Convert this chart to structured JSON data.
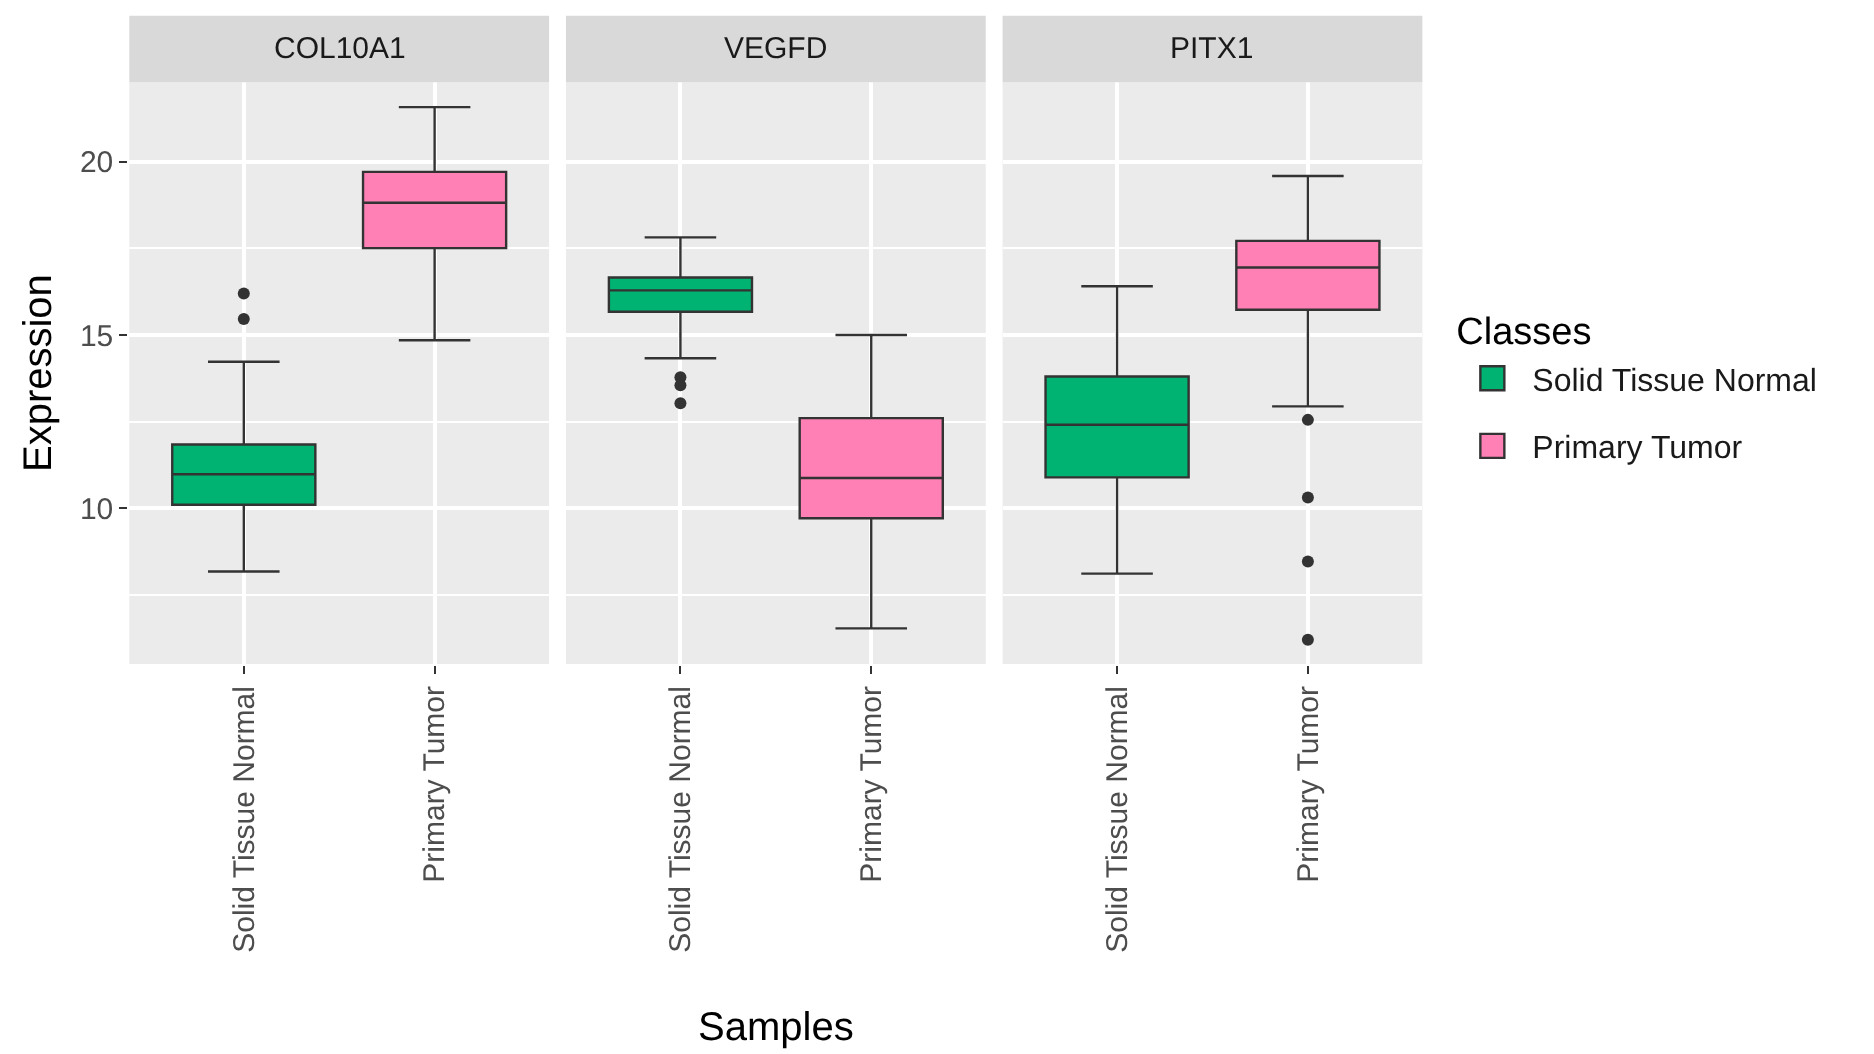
{
  "chart_data": [
    {
      "type": "box",
      "title": "COL10A1",
      "ylabel": "Expression",
      "legend_title": "Classes",
      "legend": "right",
      "categories": [
        "Solid Tissue Normal",
        "Primary Tumor"
      ],
      "ylim": [
        5.5,
        22.3
      ],
      "yticks": [
        {
          "value": 7.5,
          "label": null
        },
        10,
        {
          "value": 12.5,
          "label": null
        },
        15,
        {
          "value": 17.5,
          "label": null
        },
        20
      ],
      "grid": true,
      "series": [
        {
          "name": "Solid Tissue Normal",
          "color": "#00b373",
          "boxes": [
            {
              "low": 8.17,
              "q1": 10.1,
              "median": 10.98,
              "q3": 11.84,
              "high": 14.23,
              "outliers": [
                16.2,
                15.46
              ]
            },
            null
          ]
        },
        {
          "name": "Primary Tumor",
          "color": "#ff80b5",
          "boxes": [
            null,
            {
              "low": 14.85,
              "q1": 17.51,
              "median": 18.82,
              "q3": 19.71,
              "high": 21.58
            }
          ]
        }
      ]
    },
    {
      "type": "box",
      "title": "VEGFD",
      "xlabel": "Samples",
      "legend": "right",
      "tick_labels": "x",
      "categories": [
        "Solid Tissue Normal",
        "Primary Tumor"
      ],
      "ylim": [
        5.5,
        22.3
      ],
      "yticks": [
        {
          "value": 7.5,
          "label": null
        },
        10,
        {
          "value": 12.5,
          "label": null
        },
        15,
        {
          "value": 17.5,
          "label": null
        },
        20
      ],
      "grid": true,
      "series": [
        {
          "name": "Solid Tissue Normal",
          "color": "#00b373",
          "boxes": [
            {
              "low": 14.33,
              "q1": 15.67,
              "median": 16.29,
              "q3": 16.66,
              "high": 17.82,
              "outliers": [
                13.78,
                13.55,
                13.03
              ]
            },
            null
          ]
        },
        {
          "name": "Primary Tumor",
          "color": "#ff80b5",
          "boxes": [
            null,
            {
              "low": 6.53,
              "q1": 9.71,
              "median": 10.87,
              "q3": 12.6,
              "high": 15.0
            }
          ]
        }
      ]
    },
    {
      "type": "box",
      "title": "PITX1",
      "legend": "right",
      "tick_labels": "x",
      "categories": [
        "Solid Tissue Normal",
        "Primary Tumor"
      ],
      "ylim": [
        5.5,
        22.3
      ],
      "yticks": [
        {
          "value": 7.5,
          "label": null
        },
        10,
        {
          "value": 12.5,
          "label": null
        },
        15,
        {
          "value": 17.5,
          "label": null
        },
        20
      ],
      "grid": true,
      "series": [
        {
          "name": "Solid Tissue Normal",
          "color": "#00b373",
          "boxes": [
            {
              "low": 8.11,
              "q1": 10.89,
              "median": 12.41,
              "q3": 13.8,
              "high": 16.41
            },
            null
          ]
        },
        {
          "name": "Primary Tumor",
          "color": "#ff80b5",
          "boxes": [
            null,
            {
              "low": 12.94,
              "q1": 15.73,
              "median": 16.95,
              "q3": 17.72,
              "high": 19.59,
              "outliers": [
                12.55,
                10.31,
                8.46,
                6.2
              ]
            }
          ]
        }
      ]
    }
  ]
}
